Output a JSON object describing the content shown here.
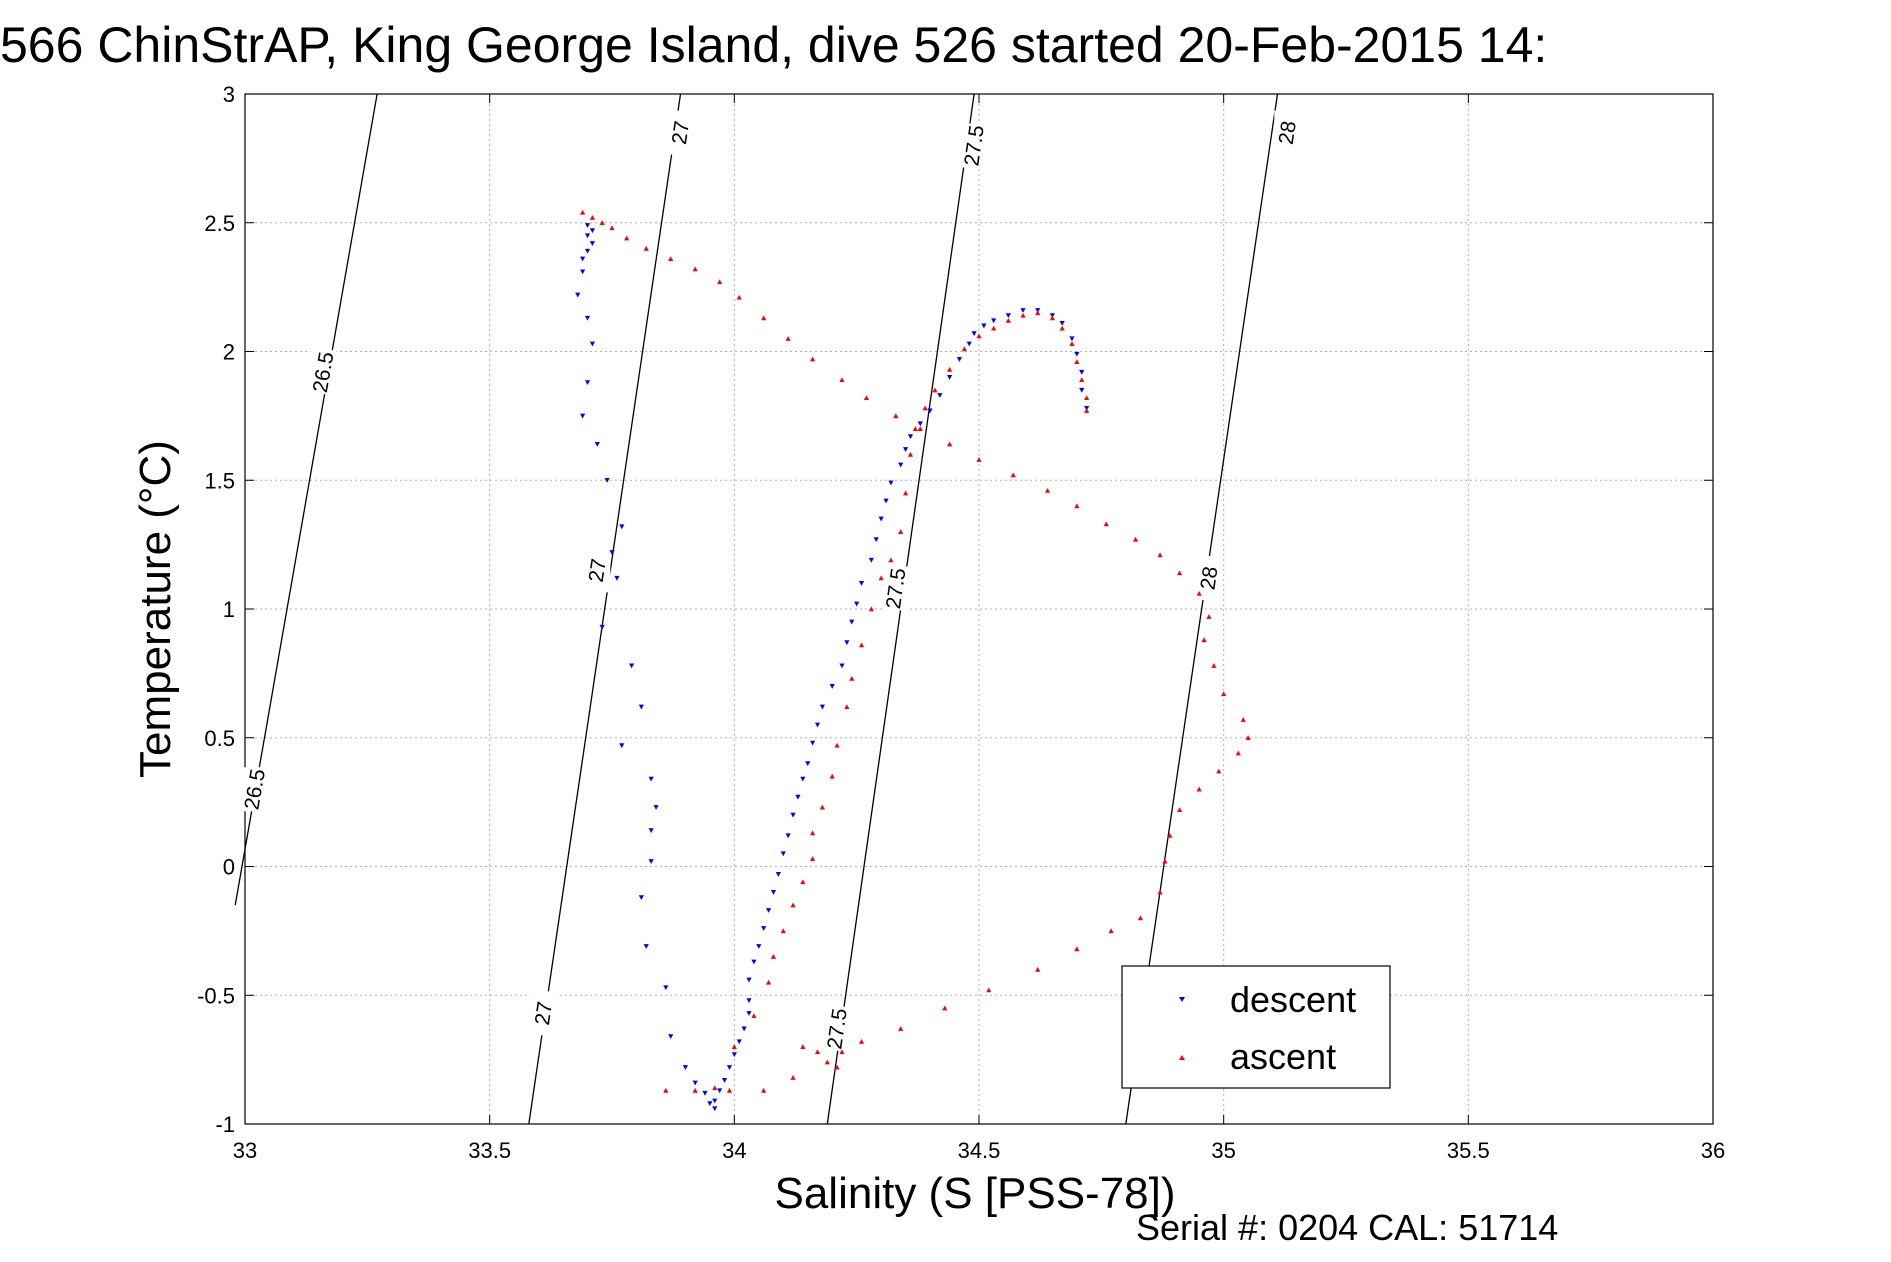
{
  "figure": {
    "title": "566 ChinStrAP, King George Island, dive 526 started 20-Feb-2015 14:",
    "serial_note": "Serial #: 0204  CAL: 51714"
  },
  "chart_data": {
    "type": "scatter",
    "title": "566 ChinStrAP, King George Island, dive 526 started 20-Feb-2015 14:",
    "xlabel": "Salinity (S [PSS-78])",
    "ylabel": "Temperature (°C)",
    "xlim": [
      33,
      36
    ],
    "ylim": [
      -1,
      3
    ],
    "x_ticks": [
      33,
      33.5,
      34,
      34.5,
      35,
      35.5,
      36
    ],
    "x_tick_labels": [
      "33",
      "33.5",
      "34",
      "34.5",
      "35",
      "35.5",
      "36"
    ],
    "y_ticks": [
      -1,
      -0.5,
      0,
      0.5,
      1,
      1.5,
      2,
      2.5,
      3
    ],
    "y_tick_labels": [
      "-1",
      "-0.5",
      "0",
      "0.5",
      "1",
      "1.5",
      "2",
      "2.5",
      "3"
    ],
    "grid": true,
    "legend_position": "bottom-right",
    "isopycnals": [
      {
        "label": "26.5",
        "points": [
          [
            32.98,
            -0.15
          ],
          [
            33.27,
            3.0
          ]
        ],
        "label_at": [
          [
            33.02,
            0.3
          ],
          [
            33.16,
            1.92
          ]
        ]
      },
      {
        "label": "27",
        "points": [
          [
            33.58,
            -1.0
          ],
          [
            33.89,
            3.0
          ]
        ],
        "label_at": [
          [
            33.61,
            -0.57
          ],
          [
            33.72,
            1.15
          ],
          [
            33.89,
            2.85
          ]
        ]
      },
      {
        "label": "27.5",
        "points": [
          [
            34.19,
            -1.0
          ],
          [
            34.49,
            3.0
          ]
        ],
        "label_at": [
          [
            34.21,
            -0.63
          ],
          [
            34.33,
            1.08
          ],
          [
            34.49,
            2.8
          ]
        ]
      },
      {
        "label": "28",
        "points": [
          [
            34.8,
            -1.0
          ],
          [
            35.11,
            3.0
          ]
        ],
        "label_at": [
          [
            34.97,
            1.12
          ],
          [
            35.13,
            2.85
          ]
        ]
      }
    ],
    "series": [
      {
        "name": "descent",
        "color": "#0000ff",
        "marker": "triangle-down",
        "points": [
          [
            33.7,
            2.49
          ],
          [
            33.71,
            2.47
          ],
          [
            33.7,
            2.45
          ],
          [
            33.71,
            2.42
          ],
          [
            33.7,
            2.39
          ],
          [
            33.69,
            2.36
          ],
          [
            33.69,
            2.31
          ],
          [
            33.68,
            2.22
          ],
          [
            33.7,
            2.13
          ],
          [
            33.71,
            2.03
          ],
          [
            33.7,
            1.88
          ],
          [
            33.69,
            1.75
          ],
          [
            33.72,
            1.64
          ],
          [
            33.74,
            1.5
          ],
          [
            33.77,
            1.32
          ],
          [
            33.75,
            1.22
          ],
          [
            33.76,
            1.12
          ],
          [
            33.73,
            0.93
          ],
          [
            33.79,
            0.78
          ],
          [
            33.81,
            0.62
          ],
          [
            33.77,
            0.47
          ],
          [
            33.83,
            0.34
          ],
          [
            33.84,
            0.23
          ],
          [
            33.83,
            0.14
          ],
          [
            33.83,
            0.02
          ],
          [
            33.81,
            -0.12
          ],
          [
            33.82,
            -0.31
          ],
          [
            33.86,
            -0.47
          ],
          [
            33.87,
            -0.66
          ],
          [
            33.9,
            -0.78
          ],
          [
            33.92,
            -0.84
          ],
          [
            33.94,
            -0.88
          ],
          [
            33.95,
            -0.92
          ],
          [
            33.96,
            -0.94
          ],
          [
            33.96,
            -0.91
          ],
          [
            33.97,
            -0.87
          ],
          [
            33.98,
            -0.83
          ],
          [
            33.99,
            -0.78
          ],
          [
            34.0,
            -0.73
          ],
          [
            34.01,
            -0.68
          ],
          [
            34.02,
            -0.63
          ],
          [
            34.03,
            -0.57
          ],
          [
            34.03,
            -0.52
          ],
          [
            34.03,
            -0.44
          ],
          [
            34.04,
            -0.37
          ],
          [
            34.05,
            -0.31
          ],
          [
            34.06,
            -0.24
          ],
          [
            34.07,
            -0.17
          ],
          [
            34.08,
            -0.1
          ],
          [
            34.09,
            -0.03
          ],
          [
            34.1,
            0.05
          ],
          [
            34.11,
            0.12
          ],
          [
            34.12,
            0.2
          ],
          [
            34.13,
            0.27
          ],
          [
            34.14,
            0.34
          ],
          [
            34.15,
            0.4
          ],
          [
            34.16,
            0.48
          ],
          [
            34.17,
            0.55
          ],
          [
            34.18,
            0.62
          ],
          [
            34.2,
            0.7
          ],
          [
            34.22,
            0.78
          ],
          [
            34.23,
            0.87
          ],
          [
            34.24,
            0.95
          ],
          [
            34.25,
            1.02
          ],
          [
            34.26,
            1.1
          ],
          [
            34.28,
            1.19
          ],
          [
            34.29,
            1.27
          ],
          [
            34.3,
            1.35
          ],
          [
            34.31,
            1.42
          ],
          [
            34.32,
            1.49
          ],
          [
            34.34,
            1.56
          ],
          [
            34.35,
            1.62
          ],
          [
            34.36,
            1.67
          ],
          [
            34.38,
            1.72
          ],
          [
            34.4,
            1.77
          ],
          [
            34.42,
            1.83
          ],
          [
            34.44,
            1.9
          ],
          [
            34.46,
            1.97
          ],
          [
            34.48,
            2.03
          ],
          [
            34.49,
            2.07
          ],
          [
            34.51,
            2.1
          ],
          [
            34.53,
            2.12
          ],
          [
            34.56,
            2.14
          ],
          [
            34.59,
            2.16
          ],
          [
            34.62,
            2.16
          ],
          [
            34.65,
            2.14
          ],
          [
            34.67,
            2.11
          ],
          [
            34.69,
            2.05
          ],
          [
            34.7,
            1.99
          ],
          [
            34.71,
            1.92
          ],
          [
            34.71,
            1.85
          ],
          [
            34.72,
            1.78
          ]
        ]
      },
      {
        "name": "ascent",
        "color": "#ff0000",
        "marker": "triangle-up",
        "points": [
          [
            33.69,
            2.54
          ],
          [
            33.71,
            2.52
          ],
          [
            33.73,
            2.5
          ],
          [
            33.75,
            2.48
          ],
          [
            33.78,
            2.44
          ],
          [
            33.82,
            2.4
          ],
          [
            33.87,
            2.36
          ],
          [
            33.92,
            2.32
          ],
          [
            33.97,
            2.27
          ],
          [
            34.01,
            2.21
          ],
          [
            34.06,
            2.13
          ],
          [
            34.11,
            2.05
          ],
          [
            34.16,
            1.97
          ],
          [
            34.22,
            1.89
          ],
          [
            34.27,
            1.82
          ],
          [
            34.33,
            1.75
          ],
          [
            34.38,
            1.7
          ],
          [
            34.44,
            1.64
          ],
          [
            34.5,
            1.58
          ],
          [
            34.57,
            1.52
          ],
          [
            34.64,
            1.46
          ],
          [
            34.7,
            1.4
          ],
          [
            34.76,
            1.33
          ],
          [
            34.82,
            1.27
          ],
          [
            34.87,
            1.21
          ],
          [
            34.91,
            1.14
          ],
          [
            34.95,
            1.06
          ],
          [
            34.97,
            0.97
          ],
          [
            34.96,
            0.88
          ],
          [
            34.98,
            0.78
          ],
          [
            35.0,
            0.67
          ],
          [
            35.04,
            0.57
          ],
          [
            35.05,
            0.5
          ],
          [
            35.03,
            0.44
          ],
          [
            34.99,
            0.37
          ],
          [
            34.95,
            0.3
          ],
          [
            34.91,
            0.22
          ],
          [
            34.89,
            0.12
          ],
          [
            34.88,
            0.02
          ],
          [
            34.87,
            -0.1
          ],
          [
            34.83,
            -0.2
          ],
          [
            34.77,
            -0.25
          ],
          [
            34.7,
            -0.32
          ],
          [
            34.62,
            -0.4
          ],
          [
            34.52,
            -0.48
          ],
          [
            34.43,
            -0.55
          ],
          [
            34.34,
            -0.63
          ],
          [
            34.26,
            -0.68
          ],
          [
            34.22,
            -0.72
          ],
          [
            34.21,
            -0.78
          ],
          [
            34.19,
            -0.76
          ],
          [
            34.17,
            -0.72
          ],
          [
            34.14,
            -0.7
          ],
          [
            34.12,
            -0.82
          ],
          [
            34.06,
            -0.87
          ],
          [
            33.99,
            -0.87
          ],
          [
            33.92,
            -0.87
          ],
          [
            33.86,
            -0.87
          ],
          [
            33.96,
            -0.86
          ],
          [
            34.0,
            -0.7
          ],
          [
            34.04,
            -0.58
          ],
          [
            34.07,
            -0.45
          ],
          [
            34.08,
            -0.35
          ],
          [
            34.1,
            -0.25
          ],
          [
            34.12,
            -0.15
          ],
          [
            34.14,
            -0.06
          ],
          [
            34.16,
            0.03
          ],
          [
            34.16,
            0.13
          ],
          [
            34.18,
            0.23
          ],
          [
            34.2,
            0.35
          ],
          [
            34.21,
            0.47
          ],
          [
            34.23,
            0.62
          ],
          [
            34.24,
            0.73
          ],
          [
            34.26,
            0.86
          ],
          [
            34.28,
            1.0
          ],
          [
            34.3,
            1.12
          ],
          [
            34.32,
            1.19
          ],
          [
            34.34,
            1.3
          ],
          [
            34.35,
            1.45
          ],
          [
            34.36,
            1.6
          ],
          [
            34.37,
            1.7
          ],
          [
            34.39,
            1.78
          ],
          [
            34.41,
            1.85
          ],
          [
            34.44,
            1.93
          ],
          [
            34.47,
            2.01
          ],
          [
            34.5,
            2.06
          ],
          [
            34.53,
            2.09
          ],
          [
            34.56,
            2.12
          ],
          [
            34.59,
            2.14
          ],
          [
            34.62,
            2.15
          ],
          [
            34.65,
            2.13
          ],
          [
            34.67,
            2.09
          ],
          [
            34.69,
            2.03
          ],
          [
            34.7,
            1.96
          ],
          [
            34.71,
            1.89
          ],
          [
            34.72,
            1.82
          ],
          [
            34.72,
            1.77
          ]
        ]
      }
    ]
  }
}
